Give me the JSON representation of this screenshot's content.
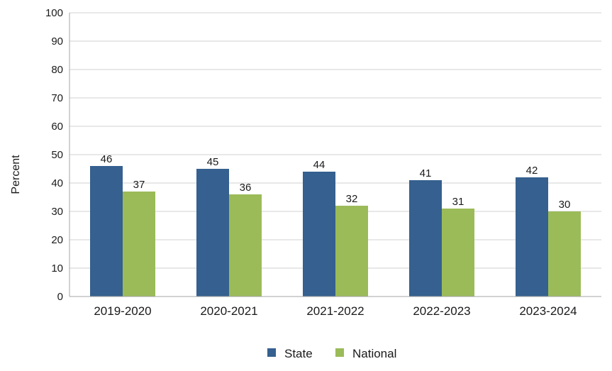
{
  "chart_data": {
    "type": "bar",
    "title": "",
    "xlabel": "",
    "ylabel": "Percent",
    "ylim": [
      0,
      100
    ],
    "yticks": [
      0,
      10,
      20,
      30,
      40,
      50,
      60,
      70,
      80,
      90,
      100
    ],
    "categories": [
      "2019-2020",
      "2020-2021",
      "2021-2022",
      "2022-2023",
      "2023-2024"
    ],
    "series": [
      {
        "name": "State",
        "color": "#35608f",
        "values": [
          46,
          45,
          44,
          41,
          42
        ]
      },
      {
        "name": "National",
        "color": "#9bbb59",
        "values": [
          37,
          36,
          32,
          31,
          30
        ]
      }
    ],
    "grid": true,
    "legend_position": "bottom"
  }
}
